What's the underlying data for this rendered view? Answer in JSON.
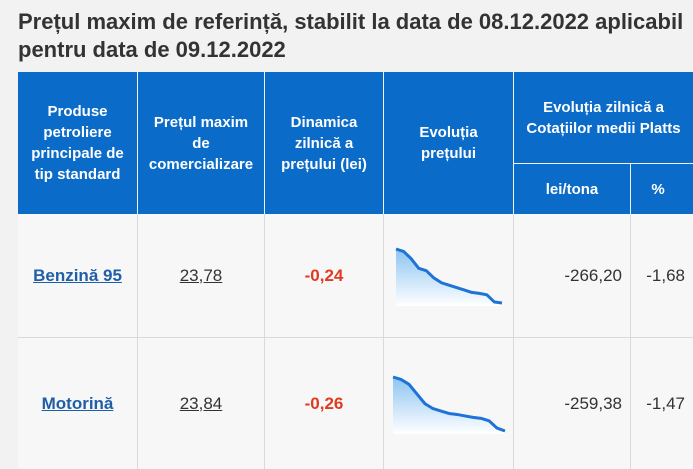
{
  "title": "Prețul maxim de referință, stabilit la data de 08.12.2022 aplicabil pentru data de 09.12.2022",
  "headers": {
    "product": "Produse petroliere principale de tip standard",
    "max_price": "Prețul maxim de comercializare",
    "daily_dynamic": "Dinamica zilnică a prețului (lei)",
    "price_evolution": "Evoluția prețului",
    "platts_evolution": "Evoluția zilnică a Cotațiilor medii Platts",
    "lei_tona": "lei/tona",
    "percent": "%"
  },
  "rows": [
    {
      "product": "Benzină 95",
      "max_price": "23,78",
      "daily_dynamic": "-0,24",
      "lei_tona": "-266,20",
      "percent": "-1,68",
      "sparkline": [
        24.9,
        24.85,
        24.7,
        24.5,
        24.45,
        24.3,
        24.2,
        24.15,
        24.1,
        24.05,
        24.0,
        23.98,
        23.95,
        23.8,
        23.78
      ]
    },
    {
      "product": "Motorină",
      "max_price": "23,84",
      "daily_dynamic": "-0,26",
      "lei_tona": "-259,38",
      "percent": "-1,47",
      "sparkline": [
        24.95,
        24.9,
        24.8,
        24.6,
        24.4,
        24.3,
        24.25,
        24.2,
        24.18,
        24.15,
        24.12,
        24.1,
        24.05,
        23.9,
        23.84
      ]
    }
  ],
  "colors": {
    "header_bg": "#0b6bc8",
    "spark_line": "#1f73d6",
    "spark_fill_top": "#8cc4f2",
    "delta": "#e03a22",
    "link": "#1f5fa8"
  }
}
